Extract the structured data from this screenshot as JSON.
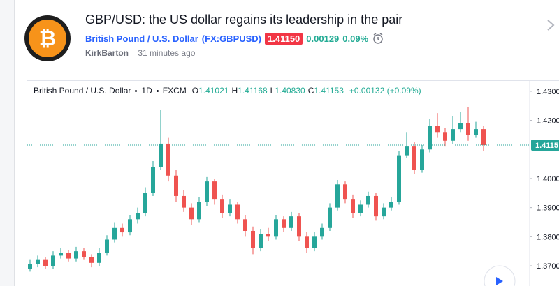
{
  "header": {
    "title": "GBP/USD: the US dollar regains its leadership in the pair",
    "symbol_name": "British Pound / U.S. Dollar",
    "symbol_code": "(FX:GBPUSD)",
    "price": "1.41150",
    "change": "0.00129",
    "change_percent": "0.09%",
    "author": "KirkBarton",
    "time": "31 minutes ago"
  },
  "chart": {
    "type": "candlestick",
    "legend": {
      "symbol": "British Pound / U.S. Dollar",
      "interval": "1D",
      "source": "FXCM",
      "ohlc": [
        {
          "label": "O",
          "value": "1.41021"
        },
        {
          "label": "H",
          "value": "1.41168"
        },
        {
          "label": "L",
          "value": "1.40830"
        },
        {
          "label": "C",
          "value": "1.41153"
        }
      ],
      "change": "+0.00132 (+0.09%)"
    },
    "colors": {
      "up": "#26a69a",
      "down": "#ef5350"
    },
    "ylim": [
      1.3628,
      1.4331
    ],
    "yticks": [
      {
        "value": 1.43,
        "label": "1.4300"
      },
      {
        "value": 1.42,
        "label": "1.4200"
      },
      {
        "value": 1.4,
        "label": "1.4000"
      },
      {
        "value": 1.39,
        "label": "1.3900"
      },
      {
        "value": 1.38,
        "label": "1.3800"
      },
      {
        "value": 1.37,
        "label": "1.3700"
      }
    ],
    "last_price": 1.4115,
    "candles": [
      [
        1.369,
        1.372,
        1.368,
        1.3705
      ],
      [
        1.3705,
        1.3735,
        1.3695,
        1.372
      ],
      [
        1.372,
        1.373,
        1.369,
        1.37
      ],
      [
        1.37,
        1.375,
        1.369,
        1.3735
      ],
      [
        1.3735,
        1.376,
        1.3725,
        1.3745
      ],
      [
        1.3745,
        1.3755,
        1.3715,
        1.3725
      ],
      [
        1.3725,
        1.3765,
        1.3715,
        1.375
      ],
      [
        1.375,
        1.376,
        1.372,
        1.373
      ],
      [
        1.373,
        1.374,
        1.3695,
        1.371
      ],
      [
        1.371,
        1.376,
        1.37,
        1.3745
      ],
      [
        1.3745,
        1.3805,
        1.3735,
        1.379
      ],
      [
        1.379,
        1.385,
        1.378,
        1.383
      ],
      [
        1.383,
        1.3845,
        1.38,
        1.3815
      ],
      [
        1.3815,
        1.3875,
        1.3805,
        1.386
      ],
      [
        1.386,
        1.39,
        1.3845,
        1.388
      ],
      [
        1.388,
        1.397,
        1.387,
        1.395
      ],
      [
        1.395,
        1.406,
        1.394,
        1.404
      ],
      [
        1.404,
        1.4235,
        1.403,
        1.412
      ],
      [
        1.412,
        1.414,
        1.399,
        1.401
      ],
      [
        1.401,
        1.403,
        1.392,
        1.394
      ],
      [
        1.394,
        1.396,
        1.3885,
        1.39
      ],
      [
        1.39,
        1.3915,
        1.384,
        1.386
      ],
      [
        1.386,
        1.3935,
        1.385,
        1.392
      ],
      [
        1.392,
        1.4005,
        1.3905,
        1.399
      ],
      [
        1.399,
        1.4,
        1.391,
        1.393
      ],
      [
        1.393,
        1.3945,
        1.3865,
        1.388
      ],
      [
        1.388,
        1.393,
        1.387,
        1.391
      ],
      [
        1.391,
        1.392,
        1.3845,
        1.386
      ],
      [
        1.386,
        1.3875,
        1.38,
        1.382
      ],
      [
        1.382,
        1.3835,
        1.374,
        1.376
      ],
      [
        1.376,
        1.3825,
        1.375,
        1.381
      ],
      [
        1.381,
        1.383,
        1.3785,
        1.38
      ],
      [
        1.38,
        1.3875,
        1.379,
        1.386
      ],
      [
        1.386,
        1.387,
        1.3815,
        1.383
      ],
      [
        1.383,
        1.3885,
        1.382,
        1.387
      ],
      [
        1.387,
        1.388,
        1.3785,
        1.38
      ],
      [
        1.38,
        1.3815,
        1.3745,
        1.376
      ],
      [
        1.376,
        1.3815,
        1.375,
        1.38
      ],
      [
        1.38,
        1.3845,
        1.379,
        1.383
      ],
      [
        1.383,
        1.3915,
        1.382,
        1.39
      ],
      [
        1.39,
        1.3995,
        1.389,
        1.398
      ],
      [
        1.398,
        1.399,
        1.3915,
        1.393
      ],
      [
        1.393,
        1.3945,
        1.3865,
        1.388
      ],
      [
        1.388,
        1.3925,
        1.387,
        1.391
      ],
      [
        1.391,
        1.3955,
        1.39,
        1.394
      ],
      [
        1.394,
        1.395,
        1.3855,
        1.387
      ],
      [
        1.387,
        1.3915,
        1.386,
        1.39
      ],
      [
        1.39,
        1.3935,
        1.389,
        1.392
      ],
      [
        1.392,
        1.4095,
        1.391,
        1.408
      ],
      [
        1.408,
        1.416,
        1.407,
        1.411
      ],
      [
        1.411,
        1.4125,
        1.4015,
        1.403
      ],
      [
        1.403,
        1.4115,
        1.402,
        1.41
      ],
      [
        1.41,
        1.4205,
        1.409,
        1.418
      ],
      [
        1.418,
        1.4225,
        1.414,
        1.416
      ],
      [
        1.416,
        1.4175,
        1.411,
        1.413
      ],
      [
        1.413,
        1.4215,
        1.412,
        1.417
      ],
      [
        1.417,
        1.423,
        1.416,
        1.419
      ],
      [
        1.419,
        1.4245,
        1.413,
        1.415
      ],
      [
        1.415,
        1.4195,
        1.414,
        1.417
      ],
      [
        1.417,
        1.418,
        1.4095,
        1.4115
      ]
    ]
  }
}
